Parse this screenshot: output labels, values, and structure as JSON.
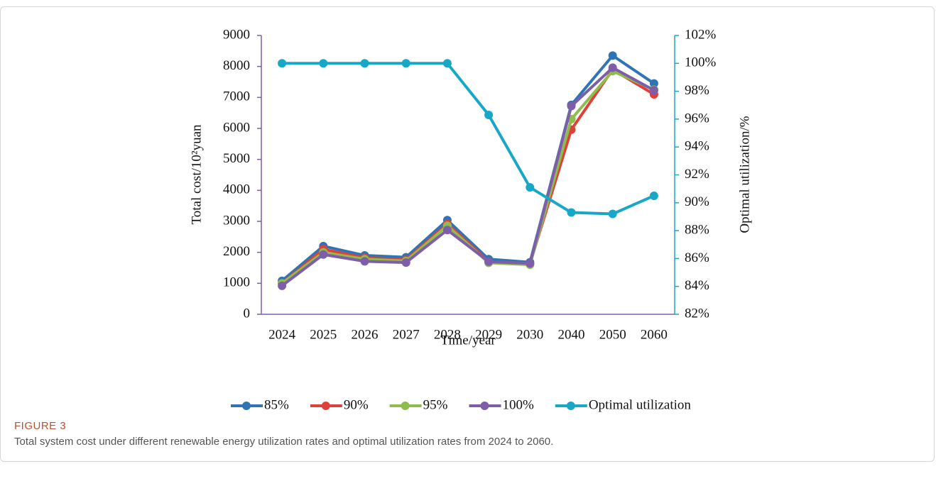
{
  "chart_data": {
    "type": "line",
    "x_label": "Time/year",
    "y_label": "Total cost/10²yuan",
    "y2_label": "Optimal utilization/%",
    "categories": [
      "2024",
      "2025",
      "2026",
      "2027",
      "2028",
      "2029",
      "2030",
      "2040",
      "2050",
      "2060"
    ],
    "ylim": [
      0,
      9000
    ],
    "yticks": [
      0,
      1000,
      2000,
      3000,
      4000,
      5000,
      6000,
      7000,
      8000,
      9000
    ],
    "y2lim": [
      82,
      102
    ],
    "y2ticks": [
      {
        "value": 82,
        "label": "82%"
      },
      {
        "value": 84,
        "label": "84%"
      },
      {
        "value": 86,
        "label": "86%"
      },
      {
        "value": 88,
        "label": "88%"
      },
      {
        "value": 90,
        "label": "90%"
      },
      {
        "value": 92,
        "label": "92%"
      },
      {
        "value": 94,
        "label": "94%"
      },
      {
        "value": 96,
        "label": "96%"
      },
      {
        "value": 98,
        "label": "98%"
      },
      {
        "value": 100,
        "label": "100%"
      },
      {
        "value": 102,
        "label": "102%"
      }
    ],
    "legend": "bottom",
    "series": [
      {
        "name": "85%",
        "color": "#2e75b6",
        "values": [
          1080,
          2200,
          1900,
          1840,
          3040,
          1780,
          1680,
          6760,
          8350,
          7450
        ]
      },
      {
        "name": "90%",
        "color": "#e0403a",
        "values": [
          1000,
          2100,
          1820,
          1760,
          2920,
          1700,
          1640,
          5960,
          7900,
          7100
        ]
      },
      {
        "name": "95%",
        "color": "#8fbc4c",
        "values": [
          1000,
          2000,
          1780,
          1720,
          2860,
          1660,
          1600,
          6300,
          7850,
          7250
        ]
      },
      {
        "name": "100%",
        "color": "#7e5ea8",
        "values": [
          920,
          1930,
          1710,
          1670,
          2720,
          1700,
          1640,
          6720,
          7960,
          7230
        ]
      },
      {
        "name": "Optimal utilization",
        "color": "#17a8c8",
        "axis": "y2",
        "values": [
          100,
          100,
          100,
          100,
          100,
          96.3,
          91.1,
          89.3,
          89.2,
          90.5
        ]
      }
    ]
  },
  "figure": {
    "label": "FIGURE 3",
    "caption": "Total system cost under different renewable energy utilization rates and optimal utilization rates from 2024 to 2060."
  }
}
